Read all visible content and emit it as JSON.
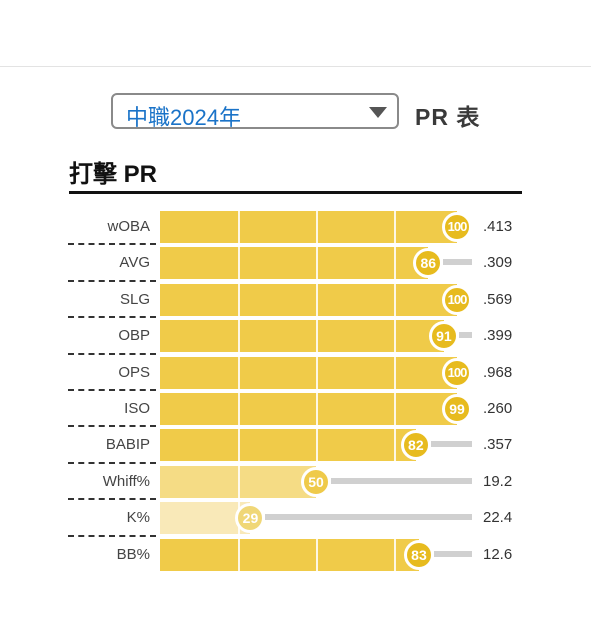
{
  "header": {
    "league_select": {
      "value": "中職2024年",
      "icon": "chevron-down-icon"
    },
    "table_label": "PR 表"
  },
  "section": {
    "title": "打擊 PR"
  },
  "colors": {
    "select_text": "#1a73c8",
    "bar_high": "#f0cb49",
    "bar_mid": "#f5dc85",
    "bar_low": "#f9e9b8",
    "badge_high": "#e7bb1e",
    "badge_mid": "#efca4a",
    "badge_low": "#f0d777",
    "rest_track": "#d0d0d0"
  },
  "stats": [
    {
      "label": "wOBA",
      "pr": 100,
      "value": ".413"
    },
    {
      "label": "AVG",
      "pr": 86,
      "value": ".309"
    },
    {
      "label": "SLG",
      "pr": 100,
      "value": ".569"
    },
    {
      "label": "OBP",
      "pr": 91,
      "value": ".399"
    },
    {
      "label": "OPS",
      "pr": 100,
      "value": ".968"
    },
    {
      "label": "ISO",
      "pr": 99,
      "value": ".260"
    },
    {
      "label": "BABIP",
      "pr": 82,
      "value": ".357"
    },
    {
      "label": "Whiff%",
      "pr": 50,
      "value": "19.2"
    },
    {
      "label": "K%",
      "pr": 29,
      "value": "22.4"
    },
    {
      "label": "BB%",
      "pr": 83,
      "value": "12.6"
    }
  ]
}
